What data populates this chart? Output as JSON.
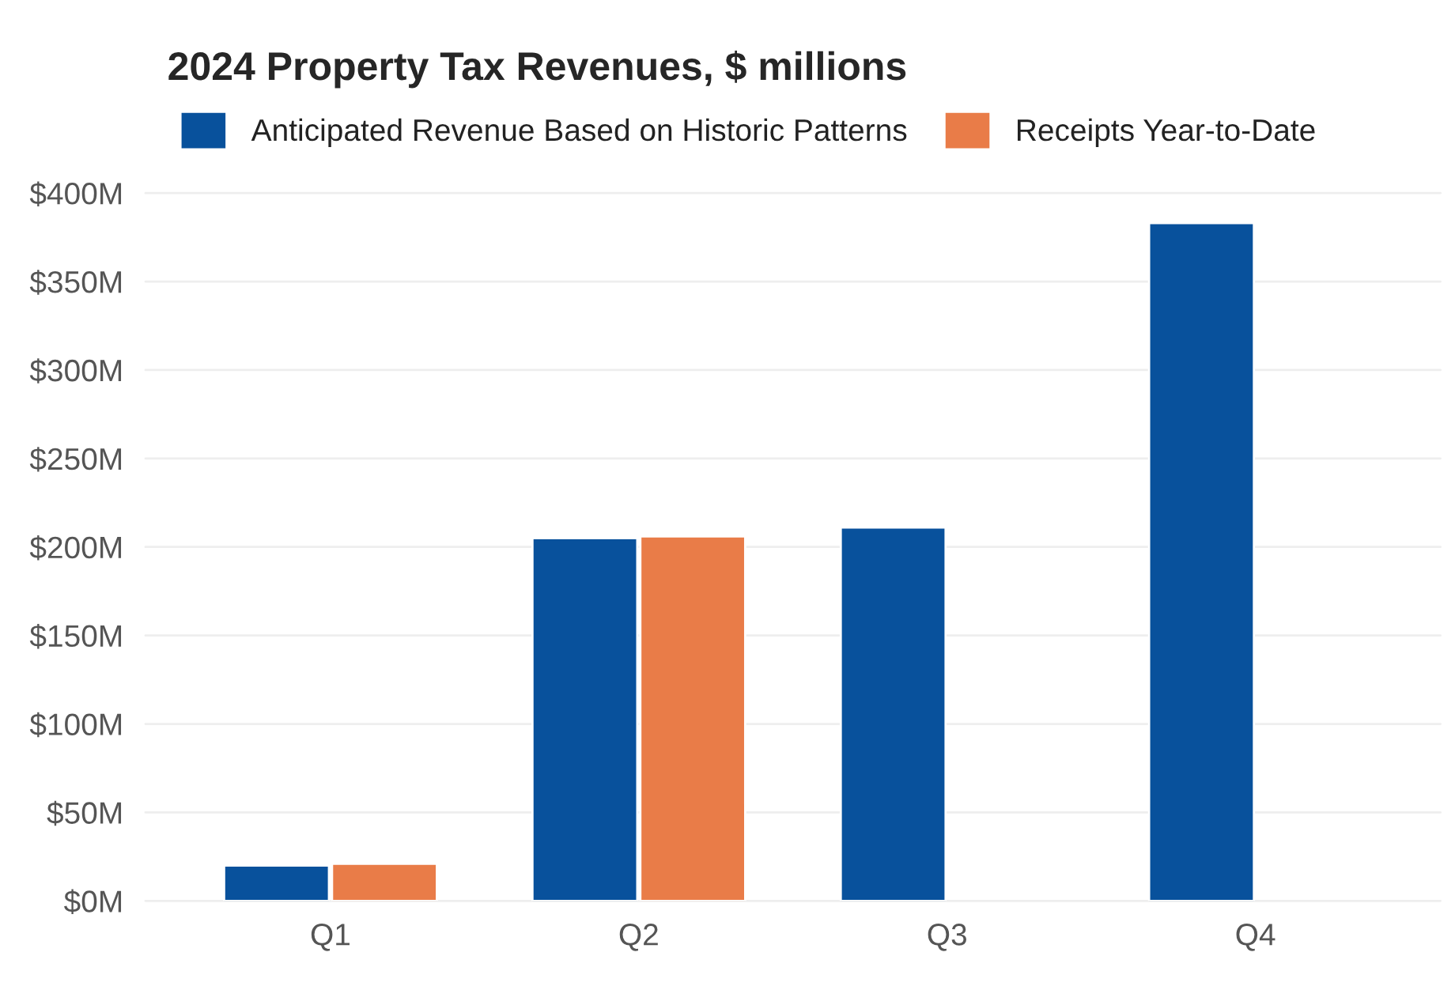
{
  "chart_data": {
    "type": "bar",
    "title": "2024 Property Tax Revenues, $ millions",
    "categories": [
      "Q1",
      "Q2",
      "Q3",
      "Q4"
    ],
    "series": [
      {
        "name": "Anticipated Revenue Based on Historic Patterns",
        "color": "#08519c",
        "values": [
          20,
          205,
          211,
          383
        ]
      },
      {
        "name": "Receipts Year-to-Date",
        "color": "#e97c48",
        "values": [
          21,
          206,
          null,
          null
        ]
      }
    ],
    "ylim": [
      0,
      400
    ],
    "yticks": [
      {
        "value": 0,
        "label": "$0M"
      },
      {
        "value": 50,
        "label": "$50M"
      },
      {
        "value": 100,
        "label": "$100M"
      },
      {
        "value": 150,
        "label": "$150M"
      },
      {
        "value": 200,
        "label": "$200M"
      },
      {
        "value": 250,
        "label": "$250M"
      },
      {
        "value": 300,
        "label": "$300M"
      },
      {
        "value": 350,
        "label": "$350M"
      },
      {
        "value": 400,
        "label": "$400M"
      }
    ],
    "grid": "y",
    "legend": "top left"
  }
}
